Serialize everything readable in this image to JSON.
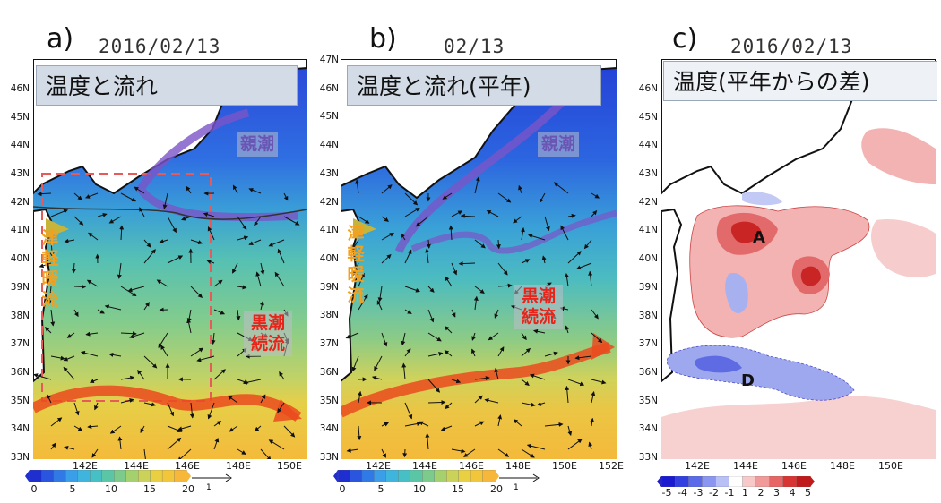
{
  "panels": [
    {
      "letter": "a)",
      "date": "2016/02/13",
      "title": "温度と流れ",
      "oyashio": "親潮",
      "kuroshio": "黒潮\n続流",
      "tsugaru": "津軽暖流"
    },
    {
      "letter": "b)",
      "date": "02/13",
      "title": "温度と流れ(平年)",
      "oyashio": "親潮",
      "kuroshio": "黒潮\n続流",
      "tsugaru": "津軽暖流"
    },
    {
      "letter": "c)",
      "date": "2016/02/13",
      "title": "温度(平年からの差)",
      "label_a": "A",
      "label_d": "D"
    }
  ],
  "lat_labels_a": [
    "46N",
    "45N",
    "44N",
    "43N",
    "42N",
    "41N",
    "40N",
    "39N",
    "38N",
    "37N",
    "36N",
    "35N",
    "34N",
    "33N"
  ],
  "lat_labels_b": [
    "47N",
    "46N",
    "45N",
    "44N",
    "43N",
    "42N",
    "41N",
    "40N",
    "39N",
    "38N",
    "37N",
    "36N",
    "35N",
    "34N",
    "33N"
  ],
  "lat_labels_c": [
    "46N",
    "45N",
    "44N",
    "43N",
    "42N",
    "41N",
    "40N",
    "39N",
    "38N",
    "37N",
    "36N",
    "35N",
    "34N",
    "33N"
  ],
  "lon_labels_a": [
    "142E",
    "144E",
    "146E",
    "148E",
    "150E"
  ],
  "lon_labels_b": [
    "142E",
    "144E",
    "146E",
    "148E",
    "150E",
    "152E"
  ],
  "lon_labels_c": [
    "142E",
    "144E",
    "146E",
    "148E",
    "150E"
  ],
  "colorbar_temp": {
    "ticks": [
      "0",
      "5",
      "10",
      "15",
      "20"
    ],
    "ref_vector": "1",
    "colors": [
      "#1f2ecf",
      "#2a55de",
      "#2f7ae6",
      "#3a9ee8",
      "#3fb4dc",
      "#46c0c4",
      "#5ac6a6",
      "#7ccb8c",
      "#a4d06e",
      "#cad25a",
      "#e8d042",
      "#f2c63a",
      "#f6b73a"
    ]
  },
  "colorbar_anom": {
    "ticks": [
      "-5",
      "-4",
      "-3",
      "-2",
      "-1",
      "1",
      "2",
      "3",
      "4",
      "5"
    ],
    "colors": [
      "#1a1ad0",
      "#3340e0",
      "#5a6ae8",
      "#8a96ef",
      "#b9c0f5",
      "#ffffff",
      "#f7c9c9",
      "#f09a9a",
      "#e86565",
      "#d93434",
      "#c11a1a"
    ]
  }
}
